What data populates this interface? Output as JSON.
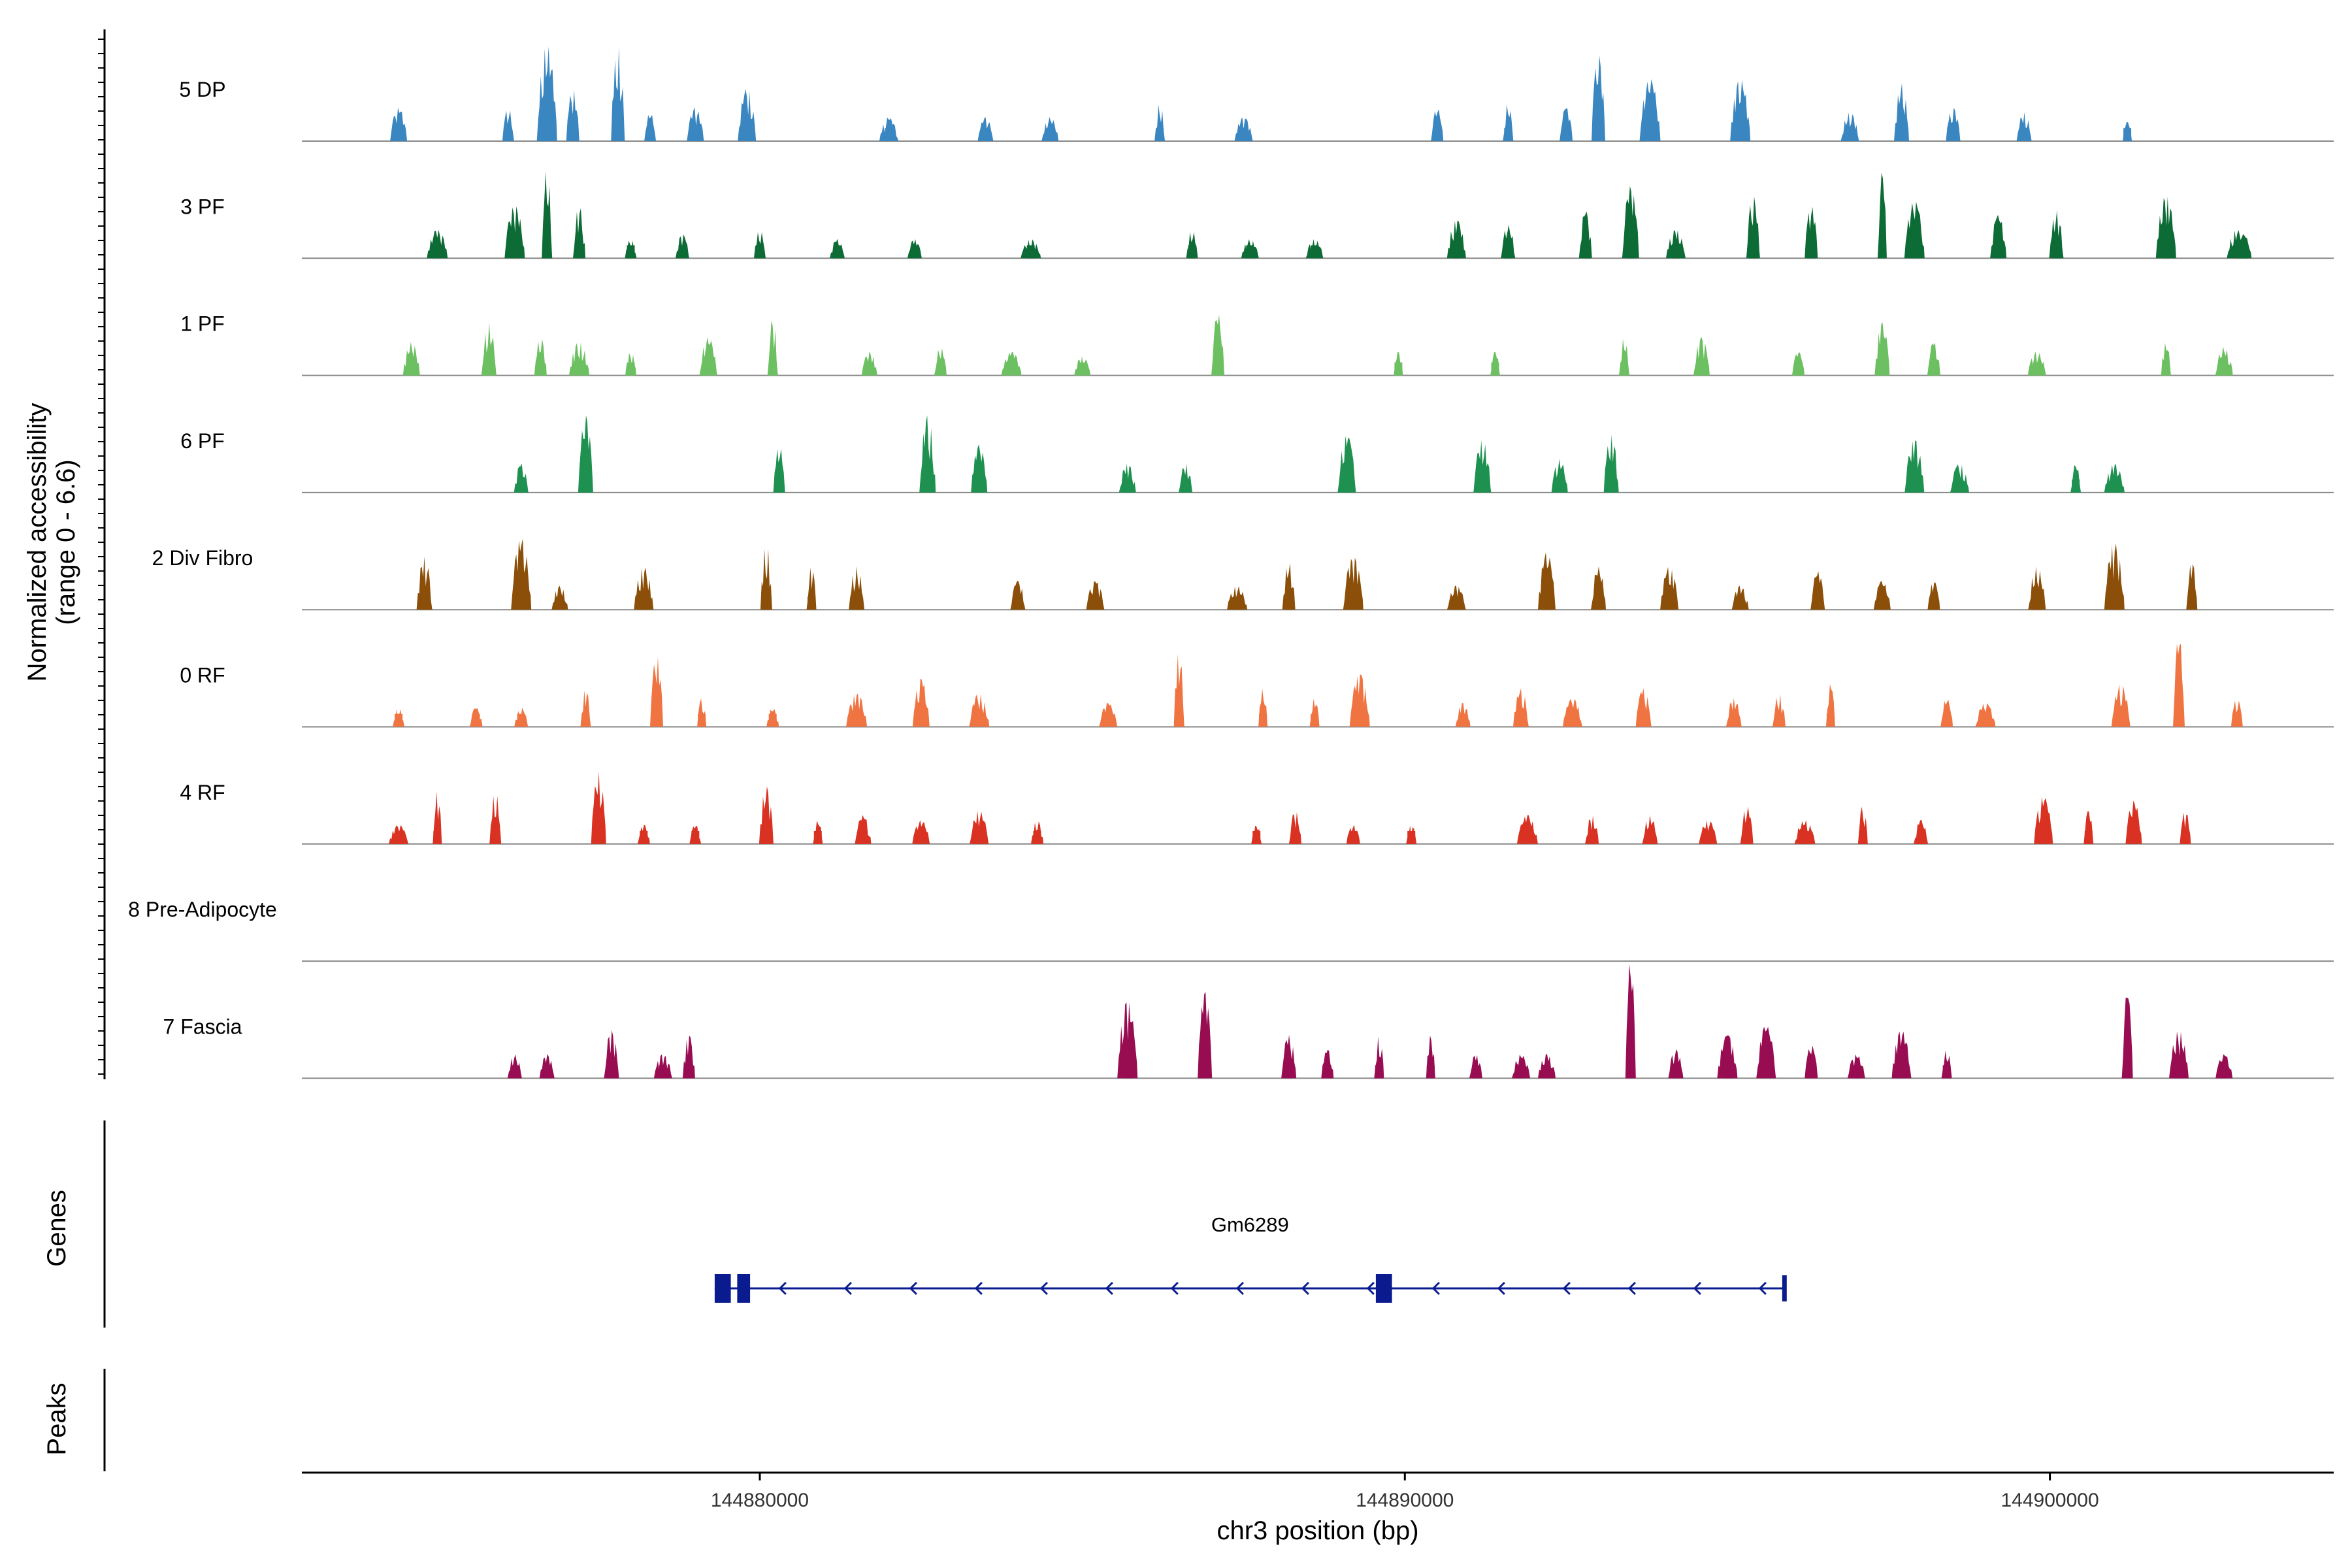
{
  "chart_data": {
    "type": "coverage",
    "ylabel_line1": "Normalized accessibility",
    "ylabel_line2": "(range 0 - 6.6)",
    "y_range": [
      0,
      6.6
    ],
    "xlabel": "chr3 position (bp)",
    "chromosome": "chr3",
    "x_range": [
      144872900,
      144904400
    ],
    "x_ticks": [
      144880000,
      144890000,
      144900000
    ],
    "x_tick_labels": [
      "144880000",
      "144890000",
      "144900000"
    ],
    "tracks": [
      {
        "name": "5 DP",
        "color": "#3a86c0",
        "peaks": [
          [
            144874400,
            0.35
          ],
          [
            144876100,
            0.35
          ],
          [
            144876700,
            1.0
          ],
          [
            144877100,
            0.55
          ],
          [
            144877800,
            1.0
          ],
          [
            144878300,
            0.3
          ],
          [
            144879000,
            0.35
          ],
          [
            144879800,
            0.55
          ],
          [
            144882000,
            0.25
          ],
          [
            144883500,
            0.25
          ],
          [
            144884500,
            0.25
          ],
          [
            144886200,
            0.4
          ],
          [
            144887500,
            0.25
          ],
          [
            144890500,
            0.35
          ],
          [
            144891600,
            0.4
          ],
          [
            144892500,
            0.35
          ],
          [
            144893000,
            0.9
          ],
          [
            144893800,
            0.65
          ],
          [
            144895200,
            0.65
          ],
          [
            144896900,
            0.3
          ],
          [
            144897700,
            0.6
          ],
          [
            144898500,
            0.35
          ],
          [
            144899600,
            0.3
          ],
          [
            144901200,
            0.2
          ]
        ]
      },
      {
        "name": "3 PF",
        "color": "#0d6b36",
        "peaks": [
          [
            144875000,
            0.3
          ],
          [
            144876200,
            0.55
          ],
          [
            144876700,
            0.95
          ],
          [
            144877200,
            0.55
          ],
          [
            144878000,
            0.2
          ],
          [
            144878800,
            0.25
          ],
          [
            144880000,
            0.3
          ],
          [
            144881200,
            0.2
          ],
          [
            144882400,
            0.2
          ],
          [
            144884200,
            0.2
          ],
          [
            144886700,
            0.3
          ],
          [
            144887600,
            0.2
          ],
          [
            144888600,
            0.2
          ],
          [
            144890800,
            0.4
          ],
          [
            144891600,
            0.35
          ],
          [
            144892800,
            0.5
          ],
          [
            144893500,
            0.75
          ],
          [
            144894200,
            0.3
          ],
          [
            144895400,
            0.65
          ],
          [
            144896300,
            0.55
          ],
          [
            144897400,
            0.9
          ],
          [
            144897900,
            0.6
          ],
          [
            144899200,
            0.45
          ],
          [
            144900100,
            0.5
          ],
          [
            144901800,
            0.65
          ],
          [
            144902900,
            0.3
          ],
          [
            144903000,
            0.25
          ]
        ]
      },
      {
        "name": "1 PF",
        "color": "#6cc061",
        "peaks": [
          [
            144874600,
            0.35
          ],
          [
            144875800,
            0.55
          ],
          [
            144876600,
            0.4
          ],
          [
            144877200,
            0.35
          ],
          [
            144878000,
            0.25
          ],
          [
            144879200,
            0.4
          ],
          [
            144880200,
            0.6
          ],
          [
            144881700,
            0.25
          ],
          [
            144882800,
            0.3
          ],
          [
            144883900,
            0.25
          ],
          [
            144885000,
            0.2
          ],
          [
            144887100,
            0.65
          ],
          [
            144889900,
            0.25
          ],
          [
            144891400,
            0.25
          ],
          [
            144893400,
            0.4
          ],
          [
            144894600,
            0.4
          ],
          [
            144896100,
            0.25
          ],
          [
            144897400,
            0.55
          ],
          [
            144898200,
            0.35
          ],
          [
            144899800,
            0.25
          ],
          [
            144901800,
            0.35
          ],
          [
            144902700,
            0.3
          ]
        ]
      },
      {
        "name": "6 PF",
        "color": "#1e9150",
        "peaks": [
          [
            144876300,
            0.3
          ],
          [
            144877300,
            0.8
          ],
          [
            144880300,
            0.5
          ],
          [
            144882600,
            0.8
          ],
          [
            144883400,
            0.5
          ],
          [
            144885700,
            0.3
          ],
          [
            144886600,
            0.3
          ],
          [
            144889100,
            0.6
          ],
          [
            144891200,
            0.55
          ],
          [
            144892400,
            0.35
          ],
          [
            144893200,
            0.6
          ],
          [
            144897900,
            0.55
          ],
          [
            144898600,
            0.3
          ],
          [
            144900400,
            0.3
          ],
          [
            144901000,
            0.3
          ]
        ]
      },
      {
        "name": "2 Div Fibro",
        "color": "#8b4f0a",
        "peaks": [
          [
            144874800,
            0.55
          ],
          [
            144876300,
            0.75
          ],
          [
            144876900,
            0.25
          ],
          [
            144878200,
            0.45
          ],
          [
            144880100,
            0.7
          ],
          [
            144880800,
            0.45
          ],
          [
            144881500,
            0.45
          ],
          [
            144884000,
            0.3
          ],
          [
            144885200,
            0.3
          ],
          [
            144887400,
            0.25
          ],
          [
            144888200,
            0.5
          ],
          [
            144889200,
            0.55
          ],
          [
            144890800,
            0.25
          ],
          [
            144892200,
            0.6
          ],
          [
            144893000,
            0.45
          ],
          [
            144894100,
            0.45
          ],
          [
            144895200,
            0.25
          ],
          [
            144896400,
            0.4
          ],
          [
            144897400,
            0.3
          ],
          [
            144898200,
            0.3
          ],
          [
            144899800,
            0.45
          ],
          [
            144901000,
            0.7
          ],
          [
            144902200,
            0.5
          ]
        ]
      },
      {
        "name": "0 RF",
        "color": "#f07442",
        "peaks": [
          [
            144874400,
            0.2
          ],
          [
            144875600,
            0.2
          ],
          [
            144876300,
            0.2
          ],
          [
            144877300,
            0.4
          ],
          [
            144878400,
            0.75
          ],
          [
            144879100,
            0.3
          ],
          [
            144880200,
            0.2
          ],
          [
            144881500,
            0.35
          ],
          [
            144882500,
            0.5
          ],
          [
            144883400,
            0.35
          ],
          [
            144885400,
            0.25
          ],
          [
            144886500,
            0.8
          ],
          [
            144887800,
            0.4
          ],
          [
            144888600,
            0.3
          ],
          [
            144889300,
            0.55
          ],
          [
            144890900,
            0.25
          ],
          [
            144891800,
            0.4
          ],
          [
            144892600,
            0.3
          ],
          [
            144893700,
            0.4
          ],
          [
            144895100,
            0.3
          ],
          [
            144895800,
            0.35
          ],
          [
            144896600,
            0.45
          ],
          [
            144898400,
            0.3
          ],
          [
            144899000,
            0.25
          ],
          [
            144901100,
            0.45
          ],
          [
            144902000,
            0.95
          ],
          [
            144902900,
            0.3
          ]
        ]
      },
      {
        "name": "4 RF",
        "color": "#d93222",
        "peaks": [
          [
            144874400,
            0.2
          ],
          [
            144875000,
            0.55
          ],
          [
            144875900,
            0.55
          ],
          [
            144877500,
            0.75
          ],
          [
            144878200,
            0.2
          ],
          [
            144879000,
            0.2
          ],
          [
            144880100,
            0.6
          ],
          [
            144880900,
            0.25
          ],
          [
            144881600,
            0.3
          ],
          [
            144882500,
            0.25
          ],
          [
            144883400,
            0.35
          ],
          [
            144884300,
            0.25
          ],
          [
            144887700,
            0.2
          ],
          [
            144888300,
            0.35
          ],
          [
            144889200,
            0.2
          ],
          [
            144890100,
            0.2
          ],
          [
            144891900,
            0.3
          ],
          [
            144892900,
            0.3
          ],
          [
            144893800,
            0.3
          ],
          [
            144894700,
            0.25
          ],
          [
            144895300,
            0.4
          ],
          [
            144896200,
            0.25
          ],
          [
            144897100,
            0.4
          ],
          [
            144898000,
            0.25
          ],
          [
            144899900,
            0.5
          ],
          [
            144900600,
            0.35
          ],
          [
            144901300,
            0.45
          ],
          [
            144902100,
            0.35
          ]
        ]
      },
      {
        "name": "8 Pre-Adipocyte",
        "color": "#9e2a5a",
        "peaks": []
      },
      {
        "name": "7 Fascia",
        "color": "#980d52",
        "peaks": [
          [
            144876200,
            0.25
          ],
          [
            144876700,
            0.25
          ],
          [
            144877700,
            0.5
          ],
          [
            144878500,
            0.25
          ],
          [
            144878900,
            0.45
          ],
          [
            144885700,
            0.8
          ],
          [
            144886900,
            0.9
          ],
          [
            144888200,
            0.45
          ],
          [
            144888800,
            0.3
          ],
          [
            144889600,
            0.45
          ],
          [
            144890400,
            0.45
          ],
          [
            144891100,
            0.25
          ],
          [
            144891800,
            0.25
          ],
          [
            144892200,
            0.25
          ],
          [
            144893500,
            1.25
          ],
          [
            144894200,
            0.3
          ],
          [
            144895000,
            0.45
          ],
          [
            144895600,
            0.55
          ],
          [
            144896300,
            0.35
          ],
          [
            144897000,
            0.25
          ],
          [
            144897700,
            0.5
          ],
          [
            144898400,
            0.3
          ],
          [
            144901200,
            0.9
          ],
          [
            144902000,
            0.5
          ],
          [
            144902700,
            0.25
          ]
        ]
      }
    ],
    "gene_track_label": "Genes",
    "peaks_track_label": "Peaks",
    "gene": {
      "name": "Gm6289",
      "strand": "-",
      "start": 144879300,
      "end": 144895900,
      "exons": [
        [
          144879300,
          144879550
        ],
        [
          144879650,
          144879850
        ],
        [
          144889550,
          144889800
        ],
        [
          144895850,
          144895920
        ]
      ],
      "color": "#0a1a8f"
    }
  }
}
